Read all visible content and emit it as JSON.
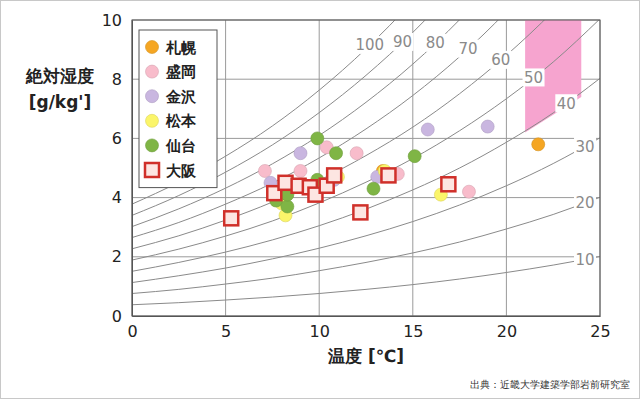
{
  "chart_data": {
    "type": "scatter",
    "x_label": "温度 [℃]",
    "y_label": "絶対湿度",
    "y_unit": "[g/kg']",
    "source": "出典：近畿大学建築学部岩前研究室",
    "xlim": [
      0,
      25
    ],
    "ylim": [
      0,
      10
    ],
    "xticks": [
      0,
      5,
      10,
      15,
      20,
      25
    ],
    "yticks": [
      0,
      2,
      4,
      6,
      8,
      10
    ],
    "grid": true,
    "legend": "upper left",
    "series": [
      {
        "name": "札幌",
        "color": "#f5a623",
        "marker": "circle",
        "x": [
          13.4,
          21.7
        ],
        "values": [
          4.9,
          5.8
        ]
      },
      {
        "name": "盛岡",
        "color": "#f8bccb",
        "marker": "circle",
        "x": [
          7.1,
          9.0,
          10.4,
          12.0,
          14.2,
          18.0,
          8.5
        ],
        "values": [
          4.9,
          4.9,
          5.7,
          5.5,
          4.8,
          4.2,
          4.4
        ]
      },
      {
        "name": "金沢",
        "color": "#c9b6e0",
        "marker": "circle",
        "x": [
          7.4,
          9.0,
          13.1,
          15.8,
          19.0,
          10.8
        ],
        "values": [
          4.5,
          5.5,
          4.7,
          6.3,
          6.4,
          4.6
        ]
      },
      {
        "name": "松本",
        "color": "#fbf56a",
        "marker": "circle",
        "x": [
          8.2,
          8.0,
          11.0,
          13.5,
          16.5
        ],
        "values": [
          3.4,
          3.8,
          4.7,
          4.9,
          4.1
        ]
      },
      {
        "name": "仙台",
        "color": "#7fb545",
        "marker": "circle",
        "x": [
          7.7,
          8.3,
          8.3,
          9.9,
          9.9,
          10.9,
          12.9,
          15.1
        ],
        "values": [
          3.9,
          3.7,
          4.1,
          4.6,
          6.0,
          5.5,
          4.3,
          5.4
        ]
      },
      {
        "name": "大阪",
        "color": "#d0302a",
        "marker": "square",
        "x": [
          5.3,
          7.6,
          8.2,
          8.9,
          9.5,
          9.8,
          10.4,
          10.8,
          12.2,
          13.7,
          16.9
        ],
        "values": [
          3.3,
          4.15,
          4.5,
          4.4,
          4.35,
          4.1,
          4.4,
          4.75,
          3.5,
          4.75,
          4.45
        ]
      }
    ],
    "curves": {
      "x": [
        0,
        2.5,
        5,
        7.5,
        10,
        12.5,
        15,
        17.5,
        20,
        22.5,
        25
      ],
      "color": "#8a8a8a",
      "lines": [
        {
          "label": "100",
          "values": [
            3.78,
            4.52,
            5.4,
            6.42,
            7.63,
            9.03,
            10.64,
            12.51,
            14.68,
            17.16,
            20.07
          ]
        },
        {
          "label": "90",
          "values": [
            3.4,
            4.07,
            4.86,
            5.78,
            6.87,
            8.13,
            9.58,
            11.26,
            13.21,
            15.44,
            18.06
          ]
        },
        {
          "label": "80",
          "values": [
            3.02,
            3.62,
            4.32,
            5.14,
            6.1,
            7.22,
            8.51,
            10.01,
            11.74,
            13.73,
            16.06
          ]
        },
        {
          "label": "70",
          "values": [
            2.65,
            3.16,
            3.78,
            4.49,
            5.34,
            6.32,
            7.45,
            8.76,
            10.28,
            12.01,
            14.05
          ]
        },
        {
          "label": "60",
          "values": [
            2.27,
            2.71,
            3.24,
            3.85,
            4.58,
            5.42,
            6.38,
            7.51,
            8.81,
            10.3,
            12.04
          ]
        },
        {
          "label": "50",
          "values": [
            1.89,
            2.26,
            2.7,
            3.21,
            3.82,
            4.52,
            5.32,
            6.26,
            7.34,
            8.58,
            10.04
          ]
        },
        {
          "label": "40",
          "values": [
            1.51,
            1.81,
            2.16,
            2.57,
            3.05,
            3.61,
            4.26,
            5.0,
            5.87,
            6.86,
            8.03
          ]
        },
        {
          "label": "30",
          "values": [
            1.13,
            1.36,
            1.62,
            1.93,
            2.29,
            2.71,
            3.19,
            3.75,
            4.4,
            5.15,
            6.02
          ]
        },
        {
          "label": "20",
          "values": [
            0.76,
            0.9,
            1.08,
            1.28,
            1.53,
            1.81,
            2.13,
            2.5,
            2.94,
            3.43,
            4.01
          ]
        },
        {
          "label": "10",
          "values": [
            0.38,
            0.45,
            0.54,
            0.64,
            0.76,
            0.9,
            1.06,
            1.25,
            1.47,
            1.72,
            2.01
          ]
        }
      ]
    },
    "zone": {
      "color": "#f6a4cf",
      "x": [
        21,
        21,
        24,
        24,
        22.5
      ],
      "y": [
        6.2,
        10,
        10,
        7.4,
        6.8
      ]
    }
  }
}
